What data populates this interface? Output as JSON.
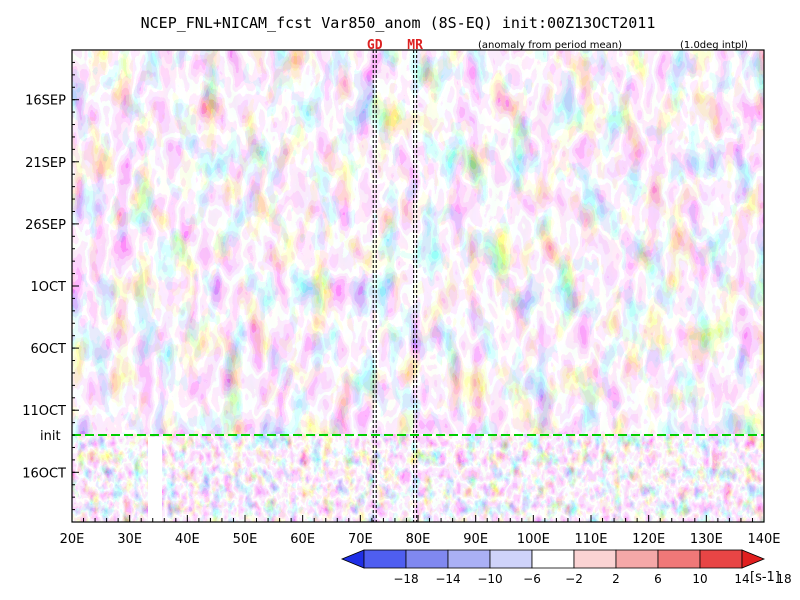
{
  "chart_data": {
    "type": "heatmap",
    "title": "NCEP_FNL+NICAM_fcst Var850_anom (8S-EQ) init:00Z13OCT2011",
    "subtitle_left": "(anomaly from period mean)",
    "subtitle_right": "(1.0deg intpl)",
    "xlabel": "",
    "ylabel": "",
    "x_ticks": [
      "20E",
      "30E",
      "40E",
      "50E",
      "60E",
      "70E",
      "80E",
      "90E",
      "100E",
      "110E",
      "120E",
      "130E",
      "140E"
    ],
    "x_tick_values": [
      20,
      30,
      40,
      50,
      60,
      70,
      80,
      90,
      100,
      110,
      120,
      130,
      140
    ],
    "xlim": [
      20,
      140
    ],
    "y_ticks": [
      "16SEP",
      "21SEP",
      "26SEP",
      "1OCT",
      "6OCT",
      "11OCT",
      "16OCT"
    ],
    "y_tick_values": [
      "2011-09-16",
      "2011-09-21",
      "2011-09-26",
      "2011-10-01",
      "2011-10-06",
      "2011-10-11",
      "2011-10-16"
    ],
    "ylim": [
      "2011-09-12",
      "2011-10-20"
    ],
    "init_label": "init",
    "init_date": "2011-10-13",
    "init_line_color": "#00cc00",
    "markers": [
      {
        "label": "GD",
        "longitude": 72.5
      },
      {
        "label": "MR",
        "longitude": 79.5
      }
    ],
    "marker_color": "#dd2222",
    "colorbar": {
      "labels": [
        "-18",
        "-14",
        "-10",
        "-6",
        "-2",
        "2",
        "6",
        "10",
        "14",
        "18"
      ],
      "unit": "[s-1]",
      "colors": [
        "#1f2fe6",
        "#4f5ef0",
        "#8088f0",
        "#aab0f5",
        "#cfd3fa",
        "#ffffff",
        "#fbd3d3",
        "#f5a8a8",
        "#f07878",
        "#e84545",
        "#e01f1f"
      ]
    }
  }
}
